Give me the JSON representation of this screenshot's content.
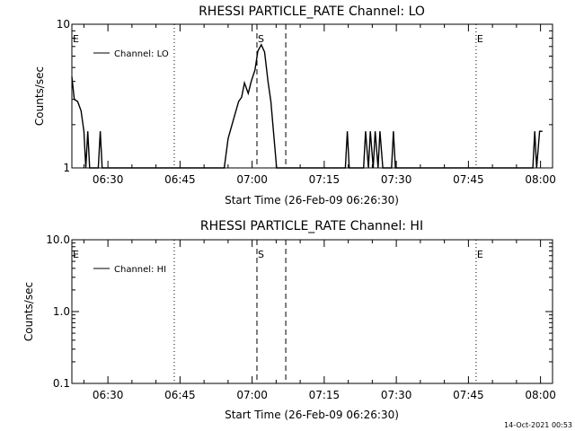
{
  "chart_data": [
    {
      "type": "line",
      "title": "RHESSI PARTICLE_RATE Channel: LO",
      "xlabel": "Start Time (26-Feb-09 06:26:30)",
      "ylabel": "Counts/sec",
      "yscale": "log",
      "ylim": [
        1,
        10
      ],
      "xlim_minutes": [
        -7.5,
        92.5
      ],
      "x_tick_labels": [
        "06:30",
        "06:45",
        "07:00",
        "07:15",
        "07:30",
        "07:45",
        "08:00"
      ],
      "x_tick_minutes": [
        0,
        15,
        30,
        45,
        60,
        75,
        90
      ],
      "y_tick_labels": [
        "1",
        "10"
      ],
      "y_tick_values": [
        1,
        10
      ],
      "legend": {
        "label": "Channel: LO",
        "placement": "top-left"
      },
      "event_markers": [
        {
          "label": "E",
          "minute": -7.5,
          "style": "dotted"
        },
        {
          "label": "",
          "minute": 13.8,
          "style": "dotted"
        },
        {
          "label": "S",
          "minute": 31.0,
          "style": "dashed"
        },
        {
          "label": "",
          "minute": 37.0,
          "style": "dashed"
        },
        {
          "label": "E",
          "minute": 76.6,
          "style": "dotted"
        },
        {
          "label": "",
          "minute": 93.3,
          "style": "dotted"
        }
      ],
      "series": [
        {
          "values": [
            {
              "m": -7.5,
              "v": 4.3
            },
            {
              "m": -7.0,
              "v": 3.0
            },
            {
              "m": -6.3,
              "v": 2.9
            },
            {
              "m": -5.6,
              "v": 2.5
            },
            {
              "m": -5.0,
              "v": 1.8
            },
            {
              "m": -4.6,
              "v": 1.0
            },
            {
              "m": -4.2,
              "v": 1.8
            },
            {
              "m": -3.8,
              "v": 1.0
            },
            {
              "m": -2.0,
              "v": 1.0
            },
            {
              "m": -1.6,
              "v": 1.8
            },
            {
              "m": -1.2,
              "v": 1.0
            },
            {
              "m": 24.2,
              "v": 1.0
            },
            {
              "m": 25.0,
              "v": 1.6
            },
            {
              "m": 26.0,
              "v": 2.1
            },
            {
              "m": 27.2,
              "v": 2.9
            },
            {
              "m": 27.8,
              "v": 3.1
            },
            {
              "m": 28.4,
              "v": 3.9
            },
            {
              "m": 29.2,
              "v": 3.3
            },
            {
              "m": 29.8,
              "v": 4.0
            },
            {
              "m": 30.6,
              "v": 4.8
            },
            {
              "m": 31.2,
              "v": 6.5
            },
            {
              "m": 31.9,
              "v": 7.2
            },
            {
              "m": 32.6,
              "v": 6.4
            },
            {
              "m": 33.3,
              "v": 4.0
            },
            {
              "m": 33.9,
              "v": 2.9
            },
            {
              "m": 34.5,
              "v": 1.7
            },
            {
              "m": 35.1,
              "v": 1.0
            },
            {
              "m": 49.4,
              "v": 1.0
            },
            {
              "m": 49.8,
              "v": 1.8
            },
            {
              "m": 50.2,
              "v": 1.0
            },
            {
              "m": 53.2,
              "v": 1.0
            },
            {
              "m": 53.6,
              "v": 1.8
            },
            {
              "m": 54.2,
              "v": 1.0
            },
            {
              "m": 54.6,
              "v": 1.8
            },
            {
              "m": 55.2,
              "v": 1.0
            },
            {
              "m": 55.6,
              "v": 1.8
            },
            {
              "m": 56.2,
              "v": 1.0
            },
            {
              "m": 56.6,
              "v": 1.8
            },
            {
              "m": 57.2,
              "v": 1.0
            },
            {
              "m": 59.0,
              "v": 1.0
            },
            {
              "m": 59.4,
              "v": 1.8
            },
            {
              "m": 59.8,
              "v": 1.0
            },
            {
              "m": 88.4,
              "v": 1.0
            },
            {
              "m": 88.8,
              "v": 1.8
            },
            {
              "m": 89.2,
              "v": 1.0
            },
            {
              "m": 89.8,
              "v": 1.8
            },
            {
              "m": 90.4,
              "v": 1.8
            }
          ]
        }
      ]
    },
    {
      "type": "line",
      "title": "RHESSI PARTICLE_RATE Channel: HI",
      "xlabel": "Start Time (26-Feb-09 06:26:30)",
      "ylabel": "Counts/sec",
      "yscale": "log",
      "ylim": [
        0.1,
        10
      ],
      "xlim_minutes": [
        -7.5,
        92.5
      ],
      "x_tick_labels": [
        "06:30",
        "06:45",
        "07:00",
        "07:15",
        "07:30",
        "07:45",
        "08:00"
      ],
      "x_tick_minutes": [
        0,
        15,
        30,
        45,
        60,
        75,
        90
      ],
      "y_tick_labels": [
        "0.1",
        "1.0",
        "10.0"
      ],
      "y_tick_values": [
        0.1,
        1,
        10
      ],
      "legend": {
        "label": "Channel: HI",
        "placement": "top-left"
      },
      "event_markers": [
        {
          "label": "E",
          "minute": -7.5,
          "style": "dotted"
        },
        {
          "label": "",
          "minute": 13.8,
          "style": "dotted"
        },
        {
          "label": "S",
          "minute": 31.0,
          "style": "dashed"
        },
        {
          "label": "",
          "minute": 37.0,
          "style": "dashed"
        },
        {
          "label": "E",
          "minute": 76.6,
          "style": "dotted"
        },
        {
          "label": "",
          "minute": 93.3,
          "style": "dotted"
        }
      ],
      "series": [
        {
          "values": []
        }
      ]
    }
  ],
  "footer": {
    "timestamp": "14-Oct-2021 00:53"
  }
}
